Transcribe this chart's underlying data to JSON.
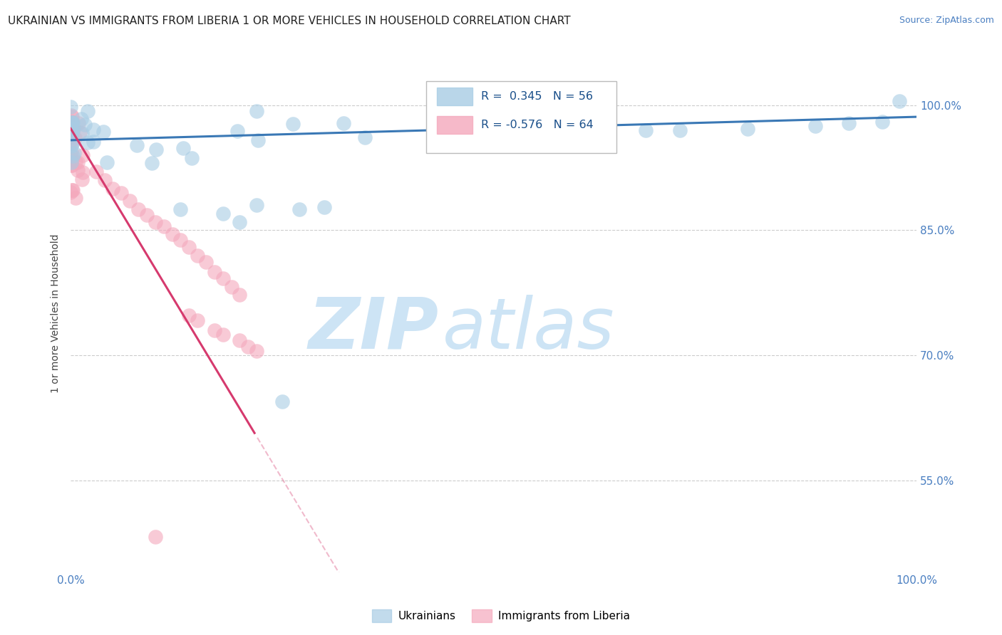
{
  "title": "UKRAINIAN VS IMMIGRANTS FROM LIBERIA 1 OR MORE VEHICLES IN HOUSEHOLD CORRELATION CHART",
  "source": "Source: ZipAtlas.com",
  "ylabel": "1 or more Vehicles in Household",
  "watermark_zip": "ZIP",
  "watermark_atlas": "atlas",
  "xlim": [
    0.0,
    1.0
  ],
  "ylim": [
    0.44,
    1.06
  ],
  "y_ticks": [
    0.55,
    0.7,
    0.85,
    1.0
  ],
  "y_tick_labels": [
    "55.0%",
    "70.0%",
    "85.0%",
    "100.0%"
  ],
  "series": [
    {
      "name": "Ukrainians",
      "color": "#a8cce4",
      "edge_color": "#5b9dc9",
      "trend_color": "#3a78b5",
      "R": 0.345,
      "N": 56
    },
    {
      "name": "Immigrants from Liberia",
      "color": "#f4a8bc",
      "edge_color": "#e05a80",
      "trend_color": "#d63a6e",
      "R": -0.576,
      "N": 64
    }
  ],
  "grid_color": "#cccccc",
  "background_color": "#ffffff",
  "title_fontsize": 11,
  "watermark_color": "#cde4f5",
  "tick_color": "#4a7fc1"
}
